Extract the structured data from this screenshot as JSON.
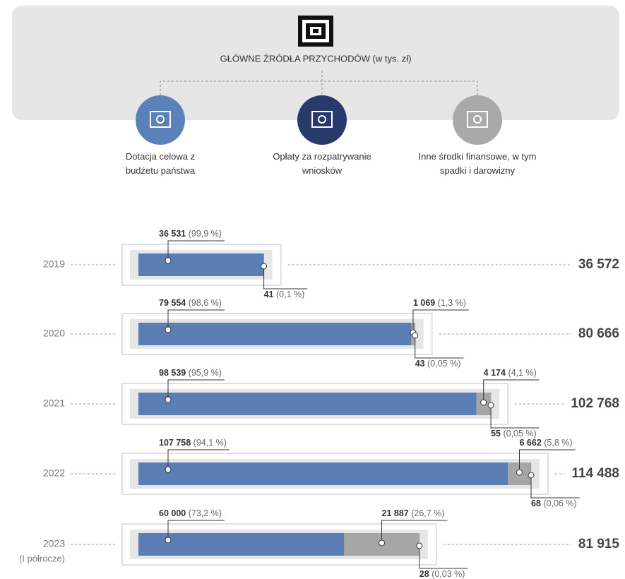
{
  "header": {
    "title": "GŁÓWNE ŹRÓDŁA PRZYCHODÓW (w tys. zł)"
  },
  "chart_data": {
    "type": "bar",
    "orientation": "horizontal",
    "stacked": true,
    "categories": [
      "2019",
      "2020",
      "2021",
      "2022",
      "2023"
    ],
    "category_sublabels": [
      null,
      null,
      null,
      null,
      "(I półrocze)"
    ],
    "series": [
      {
        "name": "Dotacja celowa z budżetu państwa",
        "color": "#5b7fb5",
        "icon_color": "#5b82b8",
        "values": [
          36531,
          79554,
          98539,
          107758,
          60000
        ],
        "value_labels": [
          "36 531",
          "79 554",
          "98 539",
          "107 758",
          "60 000"
        ],
        "percent_labels": [
          "(99,9 %)",
          "(98,6 %)",
          "(95,9 %)",
          "(94,1 %)",
          "(73,2 %)"
        ]
      },
      {
        "name": "Opłaty za rozpatrywanie wniosków",
        "color": "#a6a6a6",
        "icon_color": "#273a6b",
        "values": [
          null,
          1069,
          4174,
          6662,
          21887
        ],
        "value_labels": [
          null,
          "1 069",
          "4 174",
          "6 662",
          "21 887"
        ],
        "percent_labels": [
          null,
          "(1,3 %)",
          "(4,1 %)",
          "(5,8 %)",
          "(26,7 %)"
        ]
      },
      {
        "name": "Inne środki finansowe, w tym spadki i darowizny",
        "color": "#8c8c8c",
        "icon_color": "#a9a9a9",
        "values": [
          41,
          43,
          55,
          68,
          28
        ],
        "value_labels": [
          "41",
          "43",
          "55",
          "68",
          "28"
        ],
        "percent_labels": [
          "(0,1 %)",
          "(0,05 %)",
          "(0,05 %)",
          "(0,06 %)",
          "(0,03 %)"
        ]
      }
    ],
    "totals": [
      36572,
      80666,
      102768,
      114488,
      81915
    ],
    "total_labels": [
      "36 572",
      "80 666",
      "102 768",
      "114 488",
      "81 915"
    ]
  }
}
